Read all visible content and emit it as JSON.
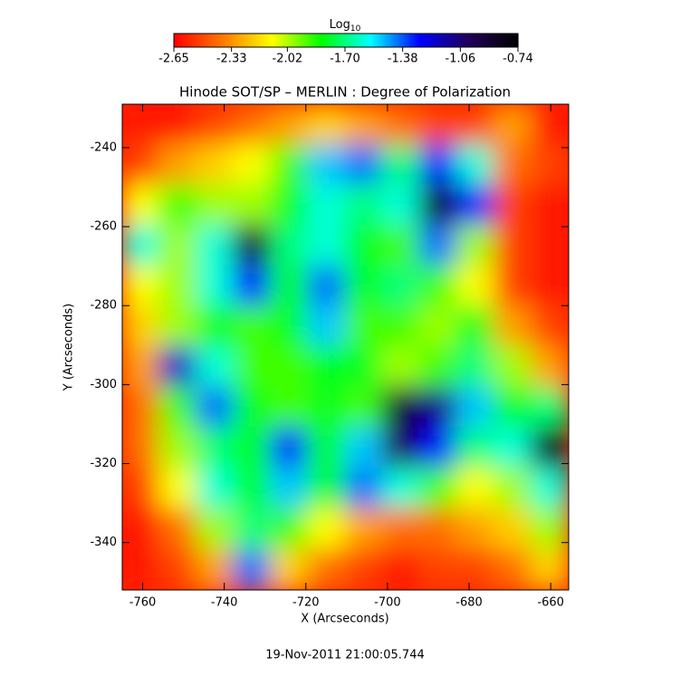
{
  "chart_data": {
    "type": "heatmap",
    "title": "Hinode SOT/SP – MERLIN : Degree of Polarization",
    "xlabel": "X (Arcseconds)",
    "ylabel": "Y (Arcseconds)",
    "footer": "19-Nov-2011 21:00:05.744",
    "colorbar_label": "Log",
    "colorbar_label_sub": "10",
    "clim": [
      -2.65,
      -0.74
    ],
    "cticks": [
      -2.65,
      -2.33,
      -2.02,
      {
        "value": -1.7,
        "label": "-1.70"
      },
      -1.38,
      -1.06,
      -0.74
    ],
    "colormap": [
      "#ff0000",
      "#ff7a00",
      "#ffff00",
      "#00ff00",
      "#00ffff",
      "#0000ff",
      "#200058",
      "#000000"
    ],
    "xlim": [
      -765,
      -655.6
    ],
    "ylim": [
      -229,
      -352
    ],
    "xticks": [
      -760,
      -740,
      -720,
      -700,
      -680,
      -660
    ],
    "yticks": [
      -240,
      -260,
      -280,
      -300,
      -320,
      -340
    ],
    "z": [
      [
        -2.6,
        -2.6,
        -2.5,
        -2.4,
        -2.3,
        -2.2,
        -2.3,
        -2.4,
        -2.5,
        -2.5,
        -2.3,
        -2.6
      ],
      [
        -2.5,
        -2.3,
        -2.2,
        -2.1,
        -1.9,
        -1.5,
        -1.4,
        -1.7,
        -1.3,
        -1.6,
        -2.4,
        -2.5
      ],
      [
        -2.1,
        -1.9,
        -2.0,
        -2.0,
        -1.8,
        -1.6,
        -1.7,
        -1.6,
        -0.8,
        -1.3,
        -2.5,
        -2.6
      ],
      [
        -1.6,
        -2.0,
        -1.6,
        -0.9,
        -1.7,
        -1.6,
        -1.8,
        -1.9,
        -1.4,
        -2.0,
        -2.5,
        -2.6
      ],
      [
        -2.1,
        -2.0,
        -1.6,
        -1.3,
        -1.8,
        -1.4,
        -1.8,
        -1.7,
        -1.9,
        -2.1,
        -2.5,
        -2.6
      ],
      [
        -2.2,
        -2.0,
        -1.8,
        -1.9,
        -1.8,
        -1.5,
        -1.9,
        -1.9,
        -2.0,
        -1.8,
        -2.3,
        -2.5
      ],
      [
        -2.3,
        -1.2,
        -1.6,
        -1.9,
        -1.9,
        -1.8,
        -1.8,
        -2.0,
        -1.9,
        -1.7,
        -2.0,
        -2.3
      ],
      [
        -2.4,
        -1.9,
        -1.4,
        -1.8,
        -1.9,
        -1.8,
        -1.9,
        -0.9,
        -1.1,
        -1.5,
        -1.8,
        -1.7
      ],
      [
        -2.4,
        -2.0,
        -1.7,
        -1.8,
        -1.3,
        -1.8,
        -1.5,
        -1.0,
        -1.3,
        -1.7,
        -1.6,
        -0.8
      ],
      [
        -2.5,
        -2.1,
        -1.6,
        -1.8,
        -1.5,
        -1.8,
        -1.4,
        -1.6,
        -1.9,
        -2.1,
        -2.0,
        -1.6
      ],
      [
        -2.6,
        -2.4,
        -2.0,
        -1.7,
        -1.9,
        -2.1,
        -2.3,
        -2.4,
        -2.4,
        -2.3,
        -2.2,
        -2.0
      ],
      [
        -2.6,
        -2.5,
        -2.3,
        -1.4,
        -2.2,
        -2.4,
        -2.5,
        -2.6,
        -2.5,
        -2.5,
        -2.4,
        -2.2
      ]
    ]
  }
}
